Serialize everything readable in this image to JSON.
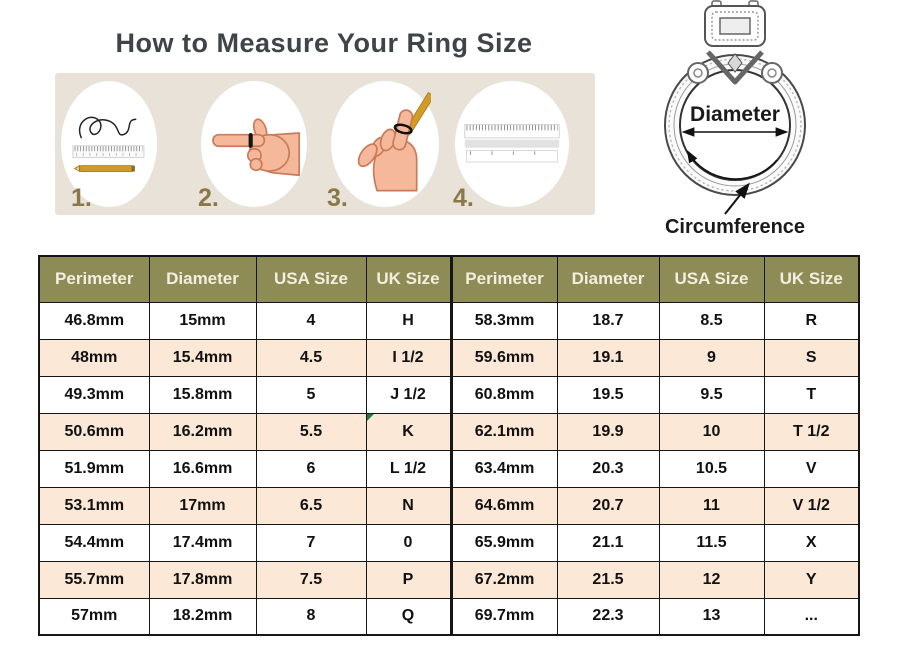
{
  "title": "How to Measure Your Ring Size",
  "steps": {
    "items": [
      {
        "number": "1.",
        "icon": "string-ruler-pencil-icon"
      },
      {
        "number": "2.",
        "icon": "hand-pointing-with-string-icon"
      },
      {
        "number": "3.",
        "icon": "hand-marking-string-with-pencil-icon"
      },
      {
        "number": "4.",
        "icon": "ruler-icon"
      }
    ]
  },
  "ring_diagram": {
    "diameter_label": "Diameter",
    "circumference_label": "Circumference"
  },
  "table": {
    "headers": [
      "Perimeter",
      "Diameter",
      "USA Size",
      "UK Size",
      "Perimeter",
      "Diameter",
      "USA Size",
      "UK Size"
    ],
    "rows": [
      [
        "46.8mm",
        "15mm",
        "4",
        "H",
        "58.3mm",
        "18.7",
        "8.5",
        "R"
      ],
      [
        "48mm",
        "15.4mm",
        "4.5",
        "I 1/2",
        "59.6mm",
        "19.1",
        "9",
        "S"
      ],
      [
        "49.3mm",
        "15.8mm",
        "5",
        "J 1/2",
        "60.8mm",
        "19.5",
        "9.5",
        "T"
      ],
      [
        "50.6mm",
        "16.2mm",
        "5.5",
        "K",
        "62.1mm",
        "19.9",
        "10",
        "T 1/2"
      ],
      [
        "51.9mm",
        "16.6mm",
        "6",
        "L 1/2",
        "63.4mm",
        "20.3",
        "10.5",
        "V"
      ],
      [
        "53.1mm",
        "17mm",
        "6.5",
        "N",
        "64.6mm",
        "20.7",
        "11",
        "V 1/2"
      ],
      [
        "54.4mm",
        "17.4mm",
        "7",
        "0",
        "65.9mm",
        "21.1",
        "11.5",
        "X"
      ],
      [
        "55.7mm",
        "17.8mm",
        "7.5",
        "P",
        "67.2mm",
        "21.5",
        "12",
        "Y"
      ],
      [
        "57mm",
        "18.2mm",
        "8",
        "Q",
        "69.7mm",
        "22.3",
        "13",
        "..."
      ]
    ],
    "flag_cell": {
      "row": 3,
      "col": 3
    }
  },
  "colors": {
    "header_bg": "#8d8b56",
    "header_text": "#f3efdf",
    "row_alt_bg": "#fce8d6",
    "row_bg": "#ffffff",
    "banner_bg": "#e8e2d9",
    "step_number": "#8a7848",
    "title": "#3f4449",
    "table_border": "#161616",
    "flag": "#1e7e34"
  }
}
